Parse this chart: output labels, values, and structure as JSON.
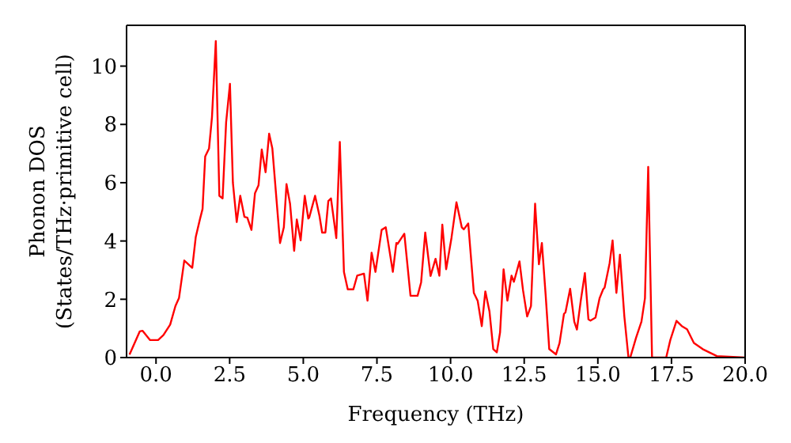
{
  "chart_data": {
    "type": "line",
    "xlabel": "Frequency (THz)",
    "ylabel": "Phonon DOS\n(States/THz·primitive cell)",
    "xlim": [
      -1,
      20
    ],
    "xticks": [
      {
        "value": 0,
        "label": "0.0"
      },
      {
        "value": 2.5,
        "label": "2.5"
      },
      {
        "value": 5,
        "label": "5.0"
      },
      {
        "value": 7.5,
        "label": "7.5"
      },
      {
        "value": 10,
        "label": "10.0"
      },
      {
        "value": 12.5,
        "label": "12.5"
      },
      {
        "value": 15,
        "label": "15.0"
      },
      {
        "value": 17.5,
        "label": "17.5"
      },
      {
        "value": 20,
        "label": "20.0"
      }
    ],
    "ylim": [
      0,
      11.4
    ],
    "yticks": [
      0,
      2,
      4,
      6,
      8,
      10
    ],
    "grid": false,
    "legend": false,
    "marker": "none",
    "line_style": "solid",
    "series": [
      {
        "color": "#ff0000",
        "x": [
          -0.9,
          -0.55,
          -0.46,
          -0.2,
          0.07,
          0.25,
          0.48,
          0.66,
          0.78,
          0.96,
          0.99,
          1.23,
          1.35,
          1.49,
          1.58,
          1.67,
          1.8,
          1.9,
          2.03,
          2.15,
          2.26,
          2.38,
          2.51,
          2.61,
          2.74,
          2.86,
          3.0,
          3.1,
          3.24,
          3.36,
          3.48,
          3.59,
          3.72,
          3.84,
          3.95,
          4.21,
          4.34,
          4.43,
          4.55,
          4.69,
          4.78,
          4.91,
          5.05,
          5.17,
          5.2,
          5.4,
          5.55,
          5.64,
          5.75,
          5.85,
          5.94,
          6.12,
          6.24,
          6.38,
          6.51,
          6.7,
          6.83,
          7.06,
          7.18,
          7.32,
          7.45,
          7.66,
          7.8,
          8.04,
          8.16,
          8.2,
          8.43,
          8.64,
          8.88,
          9.0,
          9.14,
          9.32,
          9.49,
          9.62,
          9.72,
          9.85,
          10.03,
          10.2,
          10.38,
          10.45,
          10.6,
          10.79,
          10.92,
          11.06,
          11.18,
          11.32,
          11.45,
          11.57,
          11.68,
          11.8,
          11.93,
          12.07,
          12.15,
          12.34,
          12.46,
          12.6,
          12.73,
          12.87,
          13.0,
          13.1,
          13.23,
          13.35,
          13.58,
          13.7,
          13.85,
          13.9,
          14.06,
          14.2,
          14.29,
          14.42,
          14.56,
          14.68,
          14.75,
          14.92,
          15.06,
          15.18,
          15.23,
          15.4,
          15.5,
          15.63,
          15.75,
          15.9,
          16.04,
          16.1,
          16.3,
          16.48,
          16.6,
          16.71,
          16.84,
          17.32,
          17.46,
          17.67,
          17.85,
          18.03,
          18.26,
          18.56,
          19.04,
          20.0
        ],
        "values": [
          0.1,
          0.9,
          0.92,
          0.6,
          0.6,
          0.77,
          1.13,
          1.77,
          2.04,
          3.33,
          3.3,
          3.08,
          4.14,
          4.74,
          5.1,
          6.9,
          7.17,
          8.25,
          10.86,
          5.55,
          5.46,
          8.07,
          9.39,
          6.0,
          4.65,
          5.55,
          4.83,
          4.8,
          4.38,
          5.64,
          5.91,
          7.14,
          6.36,
          7.68,
          7.17,
          3.93,
          4.47,
          5.95,
          5.28,
          3.66,
          4.74,
          4.02,
          5.55,
          4.77,
          4.8,
          5.55,
          4.86,
          4.29,
          4.29,
          5.37,
          5.46,
          4.1,
          7.4,
          2.94,
          2.34,
          2.34,
          2.81,
          2.88,
          1.95,
          3.6,
          2.94,
          4.38,
          4.47,
          2.94,
          3.93,
          3.9,
          4.25,
          2.12,
          2.12,
          2.58,
          4.29,
          2.8,
          3.39,
          2.81,
          4.56,
          3.03,
          4.1,
          5.33,
          4.47,
          4.4,
          4.6,
          2.22,
          1.95,
          1.08,
          2.27,
          1.59,
          0.29,
          0.18,
          0.86,
          3.03,
          1.95,
          2.81,
          2.6,
          3.3,
          2.31,
          1.41,
          1.77,
          5.28,
          3.2,
          3.93,
          2.12,
          0.29,
          0.11,
          0.5,
          1.5,
          1.55,
          2.36,
          1.23,
          0.96,
          1.95,
          2.9,
          1.31,
          1.27,
          1.37,
          2.04,
          2.34,
          2.4,
          3.24,
          4.02,
          2.22,
          3.53,
          1.41,
          0,
          0,
          0.69,
          1.23,
          2.04,
          6.54,
          0,
          0,
          0.6,
          1.26,
          1.08,
          0.97,
          0.5,
          0.29,
          0.05,
          0
        ]
      }
    ]
  }
}
